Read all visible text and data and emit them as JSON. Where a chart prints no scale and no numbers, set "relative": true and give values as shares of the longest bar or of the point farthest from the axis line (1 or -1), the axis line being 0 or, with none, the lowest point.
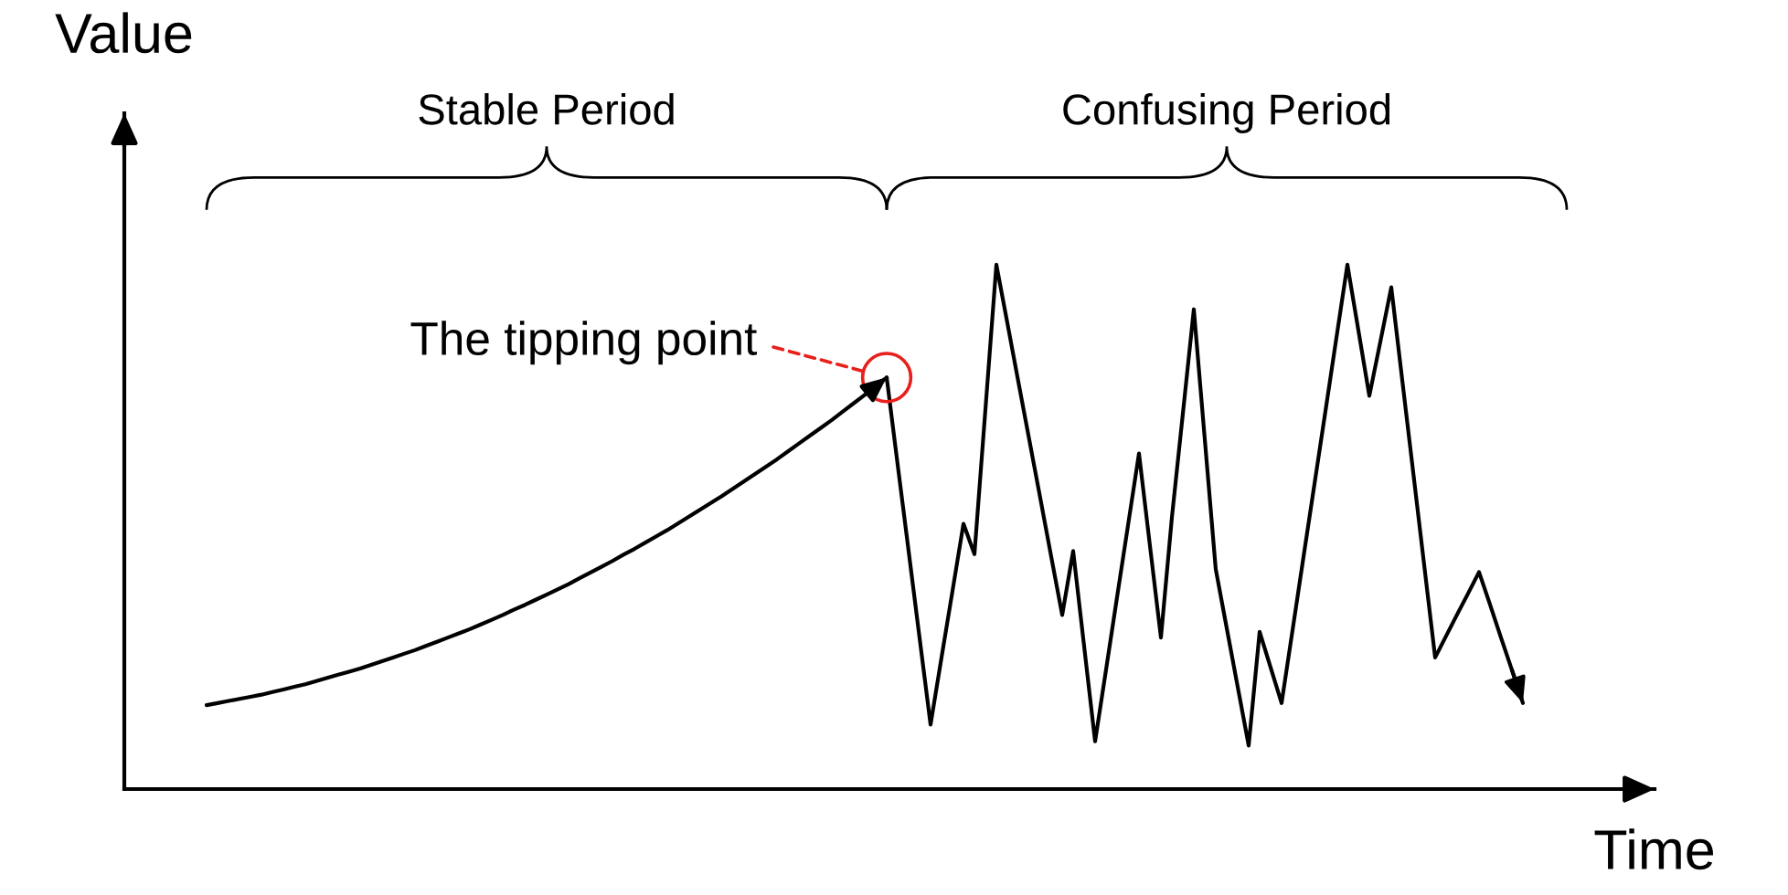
{
  "chart_data": {
    "type": "line",
    "xlabel": "Time",
    "ylabel": "Value",
    "relative": true,
    "categories": [
      null,
      null,
      null,
      null,
      null,
      null,
      null,
      null,
      null,
      null,
      null,
      null,
      null,
      null,
      null,
      null,
      null,
      null,
      null,
      null,
      null,
      null,
      null,
      null,
      null,
      null,
      null,
      null,
      null,
      null,
      null,
      null,
      null,
      null,
      null,
      null,
      null,
      null,
      null,
      null,
      null,
      null,
      null,
      null,
      null,
      null,
      null,
      null,
      null,
      null,
      null,
      null,
      null,
      null,
      null,
      null,
      null,
      null,
      null,
      null,
      null,
      null,
      null,
      null,
      null,
      null,
      null,
      null,
      null,
      null,
      null,
      null,
      null,
      null,
      null,
      null,
      null,
      null,
      null,
      null,
      null,
      null,
      null,
      null,
      null,
      null,
      null,
      null,
      null,
      null,
      null,
      null,
      null,
      null,
      null,
      null,
      null,
      null,
      null,
      null,
      null,
      null,
      null,
      null,
      null,
      null,
      null,
      null,
      null,
      null,
      null,
      null,
      null,
      null,
      null,
      null,
      null,
      null,
      null,
      null,
      null
    ],
    "series": [
      {
        "color": "#000000",
        "values": [
          0.16,
          0.164,
          0.168,
          0.172,
          0.176,
          0.18,
          0.185,
          0.19,
          0.195,
          0.2,
          0.206,
          0.212,
          0.218,
          0.224,
          0.23,
          0.237,
          0.244,
          0.251,
          0.258,
          0.265,
          0.273,
          0.281,
          0.289,
          0.297,
          0.305,
          0.314,
          0.323,
          0.332,
          0.342,
          0.351,
          0.361,
          0.371,
          0.381,
          0.391,
          0.402,
          0.413,
          0.424,
          0.435,
          0.447,
          0.458,
          0.47,
          0.482,
          0.494,
          0.507,
          0.52,
          0.533,
          0.546,
          0.559,
          0.573,
          0.587,
          0.601,
          0.615,
          0.629,
          0.644,
          0.659,
          0.674,
          0.689,
          0.704,
          0.72,
          0.736,
          0.752,
          0.768,
          0.785,
          null,
          null,
          null,
          null,
          null,
          null,
          null,
          null,
          null,
          null,
          null,
          null,
          null,
          null,
          null,
          null,
          null,
          null,
          null,
          null,
          null,
          null,
          null,
          null,
          null,
          null,
          null,
          null,
          null,
          null,
          null,
          null,
          null,
          null,
          null,
          null,
          null,
          null,
          null,
          null,
          null,
          null,
          null,
          null,
          null,
          null,
          null,
          null,
          null,
          null,
          null,
          null,
          null,
          null,
          null,
          null,
          null,
          null
        ]
      },
      {
        "color": "#000000",
        "values": [
          null,
          null,
          null,
          null,
          null,
          null,
          null,
          null,
          null,
          null,
          null,
          null,
          null,
          null,
          null,
          null,
          null,
          null,
          null,
          null,
          null,
          null,
          null,
          null,
          null,
          null,
          null,
          null,
          null,
          null,
          null,
          null,
          null,
          null,
          null,
          null,
          null,
          null,
          null,
          null,
          null,
          null,
          null,
          null,
          null,
          null,
          null,
          null,
          null,
          null,
          null,
          null,
          null,
          null,
          null,
          null,
          null,
          null,
          null,
          null,
          null,
          null,
          0.785,
          0.619,
          0.454,
          0.288,
          0.123,
          0.251,
          0.378,
          0.506,
          0.448,
          0.724,
          1.0,
          0.889,
          0.777,
          0.666,
          0.555,
          0.443,
          0.332,
          0.454,
          0.272,
          0.091,
          0.228,
          0.366,
          0.503,
          0.64,
          0.464,
          0.289,
          0.518,
          0.716,
          0.915,
          0.667,
          0.419,
          0.307,
          0.195,
          0.083,
          0.3,
          0.232,
          0.164,
          0.303,
          0.443,
          0.582,
          0.721,
          0.861,
          1.0,
          0.875,
          0.75,
          0.853,
          0.957,
          0.78,
          0.604,
          0.427,
          0.251,
          0.292,
          0.333,
          0.373,
          0.414,
          0.352,
          0.289,
          0.227,
          0.164
        ]
      }
    ],
    "annotations": [
      "Stable Period",
      "Confusing Period",
      "The tipping point"
    ]
  }
}
